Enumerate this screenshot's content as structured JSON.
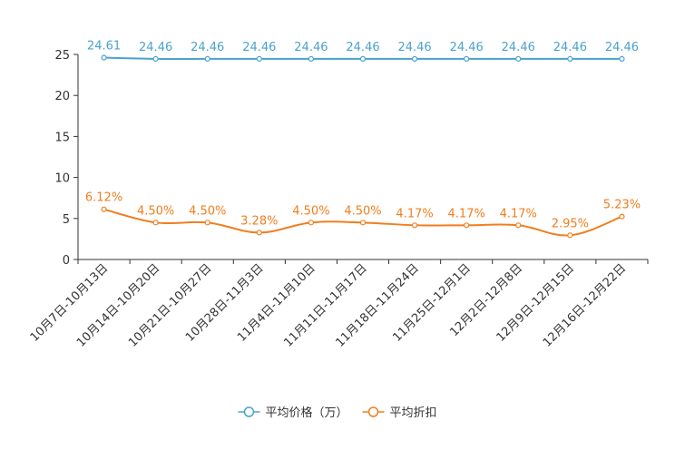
{
  "chart_data": {
    "type": "line",
    "title": "",
    "xlabel": "",
    "ylabel": "",
    "ylim": [
      0,
      25
    ],
    "yticks": [
      0,
      5,
      10,
      15,
      20,
      25
    ],
    "categories": [
      "10月7日-10月13日",
      "10月14日-10月20日",
      "10月21日-10月27日",
      "10月28日-11月3日",
      "11月4日-11月10日",
      "11月11日-11月17日",
      "11月18日-11月24日",
      "11月25日-12月1日",
      "12月2日-12月8日",
      "12月9日-12月15日",
      "12月16日-12月22日"
    ],
    "series": [
      {
        "name": "平均价格（万）",
        "color": "#4aa3cd",
        "values": [
          24.61,
          24.46,
          24.46,
          24.46,
          24.46,
          24.46,
          24.46,
          24.46,
          24.46,
          24.46,
          24.46
        ],
        "labels": [
          "24.61",
          "24.46",
          "24.46",
          "24.46",
          "24.46",
          "24.46",
          "24.46",
          "24.46",
          "24.46",
          "24.46",
          "24.46"
        ]
      },
      {
        "name": "平均折扣",
        "color": "#f07e1f",
        "values": [
          6.12,
          4.5,
          4.5,
          3.28,
          4.5,
          4.5,
          4.17,
          4.17,
          4.17,
          2.95,
          5.23
        ],
        "labels": [
          "6.12%",
          "4.50%",
          "4.50%",
          "3.28%",
          "4.50%",
          "4.50%",
          "4.17%",
          "4.17%",
          "4.17%",
          "2.95%",
          "5.23%"
        ]
      }
    ],
    "grid": false,
    "legend_position": "bottom-center"
  }
}
